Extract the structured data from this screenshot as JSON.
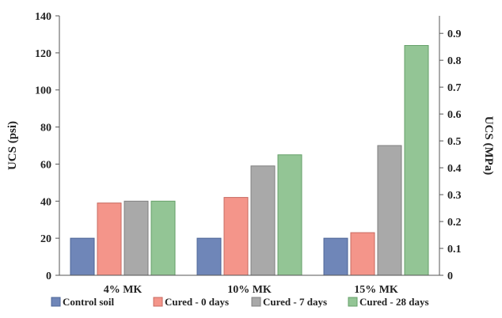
{
  "chart_data": {
    "type": "bar",
    "categories": [
      "4% MK",
      "10% MK",
      "15% MK"
    ],
    "series": [
      {
        "name": "Control soil",
        "values": [
          20,
          20,
          20
        ],
        "color": "#6f86b8",
        "stroke": "#4d6597"
      },
      {
        "name": "Cured - 0 days",
        "values": [
          39,
          42,
          23
        ],
        "color": "#f4958a",
        "stroke": "#c86a60"
      },
      {
        "name": "Cured - 7 days",
        "values": [
          40,
          59,
          70
        ],
        "color": "#a9a9a9",
        "stroke": "#7f7f7f"
      },
      {
        "name": "Cured - 28 days",
        "values": [
          40,
          65,
          124
        ],
        "color": "#93c595",
        "stroke": "#66a069"
      }
    ],
    "ylabel": "UCS (psi)",
    "y2label": "UCS (MPa)",
    "ylim": [
      0,
      140
    ],
    "y_ticks": [
      "0",
      "20",
      "40",
      "60",
      "80",
      "100",
      "120",
      "140"
    ],
    "y2lim": [
      0,
      0.9653
    ],
    "y2_ticks": [
      "0",
      "0.1",
      "0.2",
      "0.3",
      "0.4",
      "0.5",
      "0.6",
      "0.7",
      "0.8",
      "0.9"
    ],
    "grid": false,
    "legend_position": "bottom"
  }
}
